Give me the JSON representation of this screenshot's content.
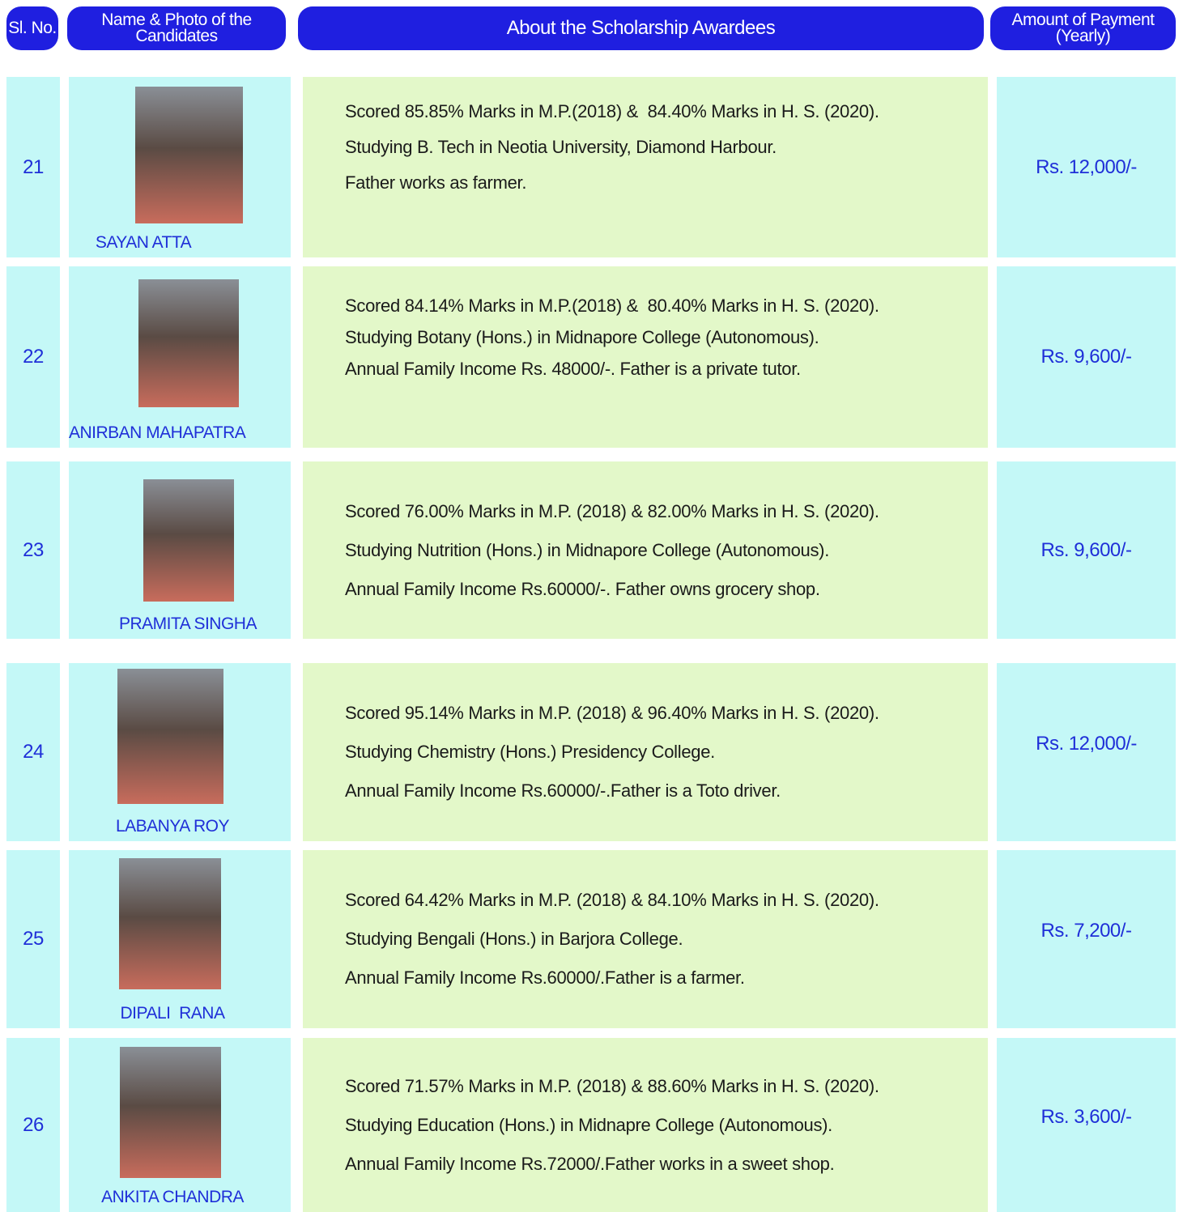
{
  "header": {
    "sl": "Sl. No.",
    "name": "Name & Photo of the Candidates",
    "about": "About the Scholarship Awardees",
    "amount": "Amount of Payment (Yearly)"
  },
  "rows": [
    {
      "sl": "21",
      "name": "SAYAN ATTA",
      "lines": [
        "Scored 85.85% Marks in M.P.(2018) &  84.40% Marks in H. S. (2020).",
        "Studying B. Tech in Neotia University, Diamond Harbour.",
        "Father works as farmer."
      ],
      "amount": "Rs. 12,000/-"
    },
    {
      "sl": "22",
      "name": "ANIRBAN MAHAPATRA",
      "lines": [
        "Scored 84.14% Marks in M.P.(2018) &  80.40% Marks in H. S. (2020).",
        "Studying Botany (Hons.) in Midnapore College (Autonomous).",
        "Annual Family Income Rs. 48000/-. Father is a private tutor."
      ],
      "amount": "Rs. 9,600/-"
    },
    {
      "sl": "23",
      "name": "PRAMITA SINGHA",
      "lines": [
        "Scored 76.00% Marks in M.P. (2018) & 82.00% Marks in H. S. (2020).",
        "Studying Nutrition (Hons.) in Midnapore College (Autonomous).",
        "Annual Family Income Rs.60000/-. Father owns grocery shop."
      ],
      "amount": "Rs. 9,600/-"
    },
    {
      "sl": "24",
      "name": "LABANYA ROY",
      "lines": [
        "Scored 95.14% Marks in M.P. (2018) & 96.40% Marks in H. S. (2020).",
        "Studying Chemistry (Hons.) Presidency College.",
        "Annual Family Income Rs.60000/-.Father is a Toto driver."
      ],
      "amount": "Rs. 12,000/-"
    },
    {
      "sl": "25",
      "name": "DIPALI  RANA",
      "lines": [
        "Scored 64.42% Marks in M.P. (2018) & 84.10% Marks in H. S. (2020).",
        "Studying Bengali (Hons.) in Barjora College.",
        "Annual Family Income Rs.60000/.Father is a farmer."
      ],
      "amount": "Rs. 7,200/-"
    },
    {
      "sl": "26",
      "name": "ANKITA CHANDRA",
      "lines": [
        "Scored 71.57% Marks in M.P. (2018) & 88.60% Marks in H. S. (2020).",
        "Studying Education (Hons.) in Midnapre College (Autonomous).",
        "Annual Family Income Rs.72000/.Father works in a sweet shop."
      ],
      "amount": "Rs. 3,600/-"
    }
  ]
}
